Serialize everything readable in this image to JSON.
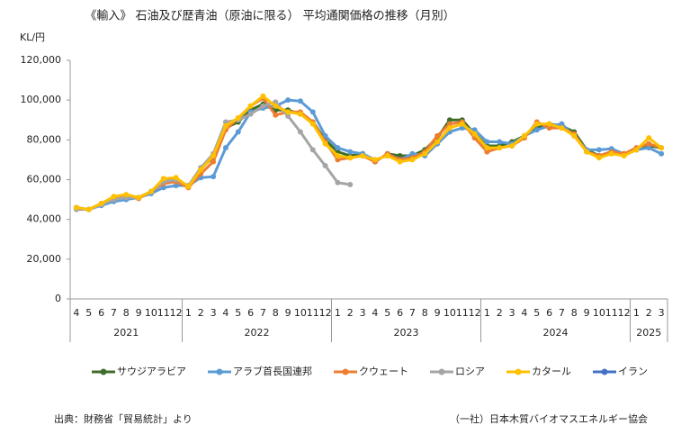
{
  "chart_data": {
    "type": "line",
    "title": "《輸入》 石油及び歴青油（原油に限る） 平均通関価格の推移（月別）",
    "y_label": "KL/円",
    "categories": [
      "4",
      "5",
      "6",
      "7",
      "8",
      "9",
      "10",
      "11",
      "12",
      "1",
      "2",
      "3",
      "4",
      "5",
      "6",
      "7",
      "8",
      "9",
      "10",
      "11",
      "12",
      "1",
      "2",
      "3",
      "4",
      "5",
      "6",
      "7",
      "8",
      "9",
      "10",
      "11",
      "12",
      "1",
      "2",
      "3",
      "4",
      "5",
      "6",
      "7",
      "8",
      "9",
      "10",
      "11",
      "12",
      "1",
      "2",
      "3"
    ],
    "year_groups": [
      {
        "label": "2021",
        "span": 9
      },
      {
        "label": "2022",
        "span": 12
      },
      {
        "label": "2023",
        "span": 12
      },
      {
        "label": "2024",
        "span": 12
      },
      {
        "label": "2025",
        "span": 3
      }
    ],
    "ylim": [
      0,
      120000
    ],
    "yticks": [
      0,
      {
        "value": 20000,
        "label": "20,000"
      },
      {
        "value": 40000,
        "label": "40,000"
      },
      {
        "value": 60000,
        "label": "60,000"
      },
      {
        "value": 80000,
        "label": "80,000"
      },
      {
        "value": 100000,
        "label": "100,000"
      },
      {
        "value": 120000,
        "label": "120,000"
      }
    ],
    "series": [
      {
        "name": "サウジアラビア",
        "color": "#3f6e2a",
        "values": [
          45500,
          45000,
          47500,
          50000,
          51500,
          51000,
          54000,
          59000,
          60000,
          56500,
          66000,
          71000,
          86000,
          89000,
          95000,
          98000,
          95000,
          95000,
          93000,
          89000,
          80000,
          74000,
          72000,
          73000,
          69000,
          73000,
          72000,
          72000,
          75000,
          81000,
          90000,
          90000,
          83000,
          77000,
          77000,
          79000,
          82000,
          86000,
          88000,
          87000,
          84000,
          75000,
          72000,
          74000,
          73000,
          75000,
          77000,
          76000
        ]
      },
      {
        "name": "アラブ首長国連邦",
        "color": "#5b9bd5",
        "values": [
          46000,
          45000,
          47000,
          49000,
          50000,
          51000,
          53000,
          56000,
          57000,
          57000,
          61000,
          61500,
          76000,
          84000,
          94000,
          96000,
          97000,
          100000,
          99500,
          94000,
          82000,
          76000,
          74000,
          73000,
          70000,
          72000,
          70000,
          73000,
          72000,
          78000,
          84000,
          86000,
          85000,
          79000,
          79000,
          78000,
          82000,
          85000,
          87000,
          88000,
          82000,
          75000,
          75000,
          75500,
          73000,
          75000,
          76000,
          73000
        ]
      },
      {
        "name": "クウェート",
        "color": "#ed7d31",
        "values": [
          45500,
          45000,
          48000,
          51000,
          52000,
          50500,
          54000,
          58000,
          59000,
          56000,
          63000,
          69000,
          85000,
          91000,
          97000,
          101000,
          92500,
          94000,
          94000,
          89000,
          79000,
          70000,
          71000,
          72000,
          69000,
          73000,
          70000,
          71000,
          74000,
          82000,
          88000,
          89000,
          81000,
          74000,
          76000,
          77000,
          81000,
          89000,
          86000,
          86000,
          83000,
          74000,
          72000,
          74000,
          73000,
          76000,
          78000,
          76000
        ]
      },
      {
        "name": "ロシア",
        "color": "#a5a5a5",
        "values": [
          45000,
          45000,
          47500,
          50000,
          51000,
          51000,
          54000,
          59000,
          60000,
          57000,
          66000,
          73000,
          89000,
          90000,
          93000,
          97000,
          99000,
          92000,
          84000,
          75000,
          67000,
          58500,
          57500,
          null,
          null,
          null,
          null,
          null,
          null,
          null,
          null,
          null,
          null,
          null,
          null,
          null,
          null,
          null,
          null,
          null,
          null,
          null,
          null,
          null,
          null,
          null,
          null,
          null
        ]
      },
      {
        "name": "カタール",
        "color": "#ffc000",
        "values": [
          46000,
          45000,
          48000,
          51500,
          52500,
          51000,
          54000,
          60500,
          61000,
          56500,
          65000,
          72000,
          87000,
          91000,
          97000,
          102000,
          97000,
          94000,
          93000,
          88000,
          78000,
          72000,
          71000,
          72000,
          70000,
          72000,
          69000,
          70000,
          73000,
          79000,
          86000,
          88000,
          83000,
          76000,
          76000,
          77000,
          82000,
          88000,
          88000,
          86000,
          82000,
          74000,
          71000,
          73000,
          72000,
          75000,
          81000,
          76000
        ]
      },
      {
        "name": "イラン",
        "color": "#4472c4",
        "values": [
          null,
          null,
          null,
          null,
          null,
          null,
          null,
          null,
          null,
          null,
          null,
          null,
          null,
          null,
          null,
          null,
          null,
          null,
          null,
          null,
          null,
          null,
          null,
          null,
          null,
          null,
          null,
          null,
          null,
          null,
          null,
          null,
          null,
          null,
          null,
          null,
          null,
          null,
          null,
          null,
          null,
          null,
          null,
          null,
          null,
          null,
          null,
          null
        ]
      }
    ],
    "source": "出典：財務省「貿易統計」より",
    "credit": "（一社）日本木質バイオマスエネルギー協会"
  }
}
